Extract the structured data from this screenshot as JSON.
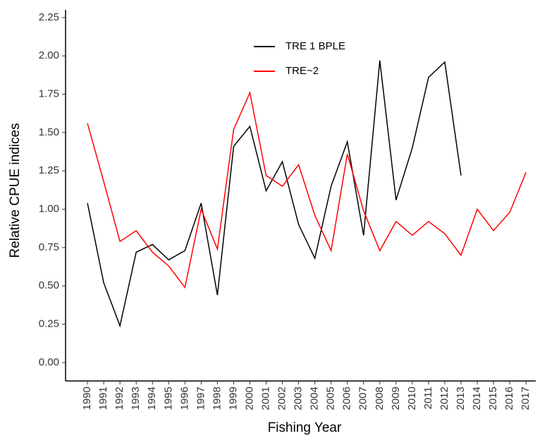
{
  "chart_data": {
    "type": "line",
    "x_label": "Fishing Year",
    "y_label": "Relative CPUE indices",
    "x": [
      1990,
      1991,
      1992,
      1993,
      1994,
      1995,
      1996,
      1997,
      1998,
      1999,
      2000,
      2001,
      2002,
      2003,
      2004,
      2005,
      2006,
      2007,
      2008,
      2009,
      2010,
      2011,
      2012,
      2013,
      2014,
      2015,
      2016,
      2017
    ],
    "series": [
      {
        "name": "TRE 1 BPLE",
        "color": "#000000",
        "values": [
          1.04,
          0.52,
          0.24,
          0.72,
          0.77,
          0.67,
          0.73,
          1.04,
          0.44,
          1.41,
          1.54,
          1.12,
          1.31,
          0.9,
          0.68,
          1.15,
          1.44,
          0.83,
          1.97,
          1.06,
          1.4,
          1.86,
          1.96,
          1.22,
          null,
          null,
          null,
          null
        ]
      },
      {
        "name": "TRE~2",
        "color": "#ff0000",
        "values": [
          1.56,
          1.18,
          0.79,
          0.86,
          0.72,
          0.63,
          0.49,
          1.0,
          0.74,
          1.52,
          1.76,
          1.22,
          1.15,
          1.29,
          0.96,
          0.73,
          1.36,
          0.99,
          0.73,
          0.92,
          0.83,
          0.92,
          0.84,
          0.7,
          1.0,
          0.86,
          0.98,
          1.24
        ]
      }
    ],
    "xlim": [
      1988.65,
      2017.6
    ],
    "xticks": [
      1990,
      1991,
      1992,
      1993,
      1994,
      1995,
      1996,
      1997,
      1998,
      1999,
      2000,
      2001,
      2002,
      2003,
      2004,
      2005,
      2006,
      2007,
      2008,
      2009,
      2010,
      2011,
      2012,
      2013,
      2014,
      2015,
      2016,
      2017
    ],
    "ylim": [
      -0.12,
      2.3
    ],
    "yticks": [
      {
        "value": 0,
        "label": "0.00"
      },
      {
        "value": 0.25,
        "label": "0.25"
      },
      {
        "value": 0.5,
        "label": "0.50"
      },
      {
        "value": 0.75,
        "label": "0.75"
      },
      {
        "value": 1,
        "label": "1.00"
      },
      {
        "value": 1.25,
        "label": "1.25"
      },
      {
        "value": 1.5,
        "label": "1.50"
      },
      {
        "value": 1.75,
        "label": "1.75"
      },
      {
        "value": 2,
        "label": "2.00"
      },
      {
        "value": 2.25,
        "label": "2.25"
      }
    ],
    "grid": false,
    "legend": "top"
  }
}
